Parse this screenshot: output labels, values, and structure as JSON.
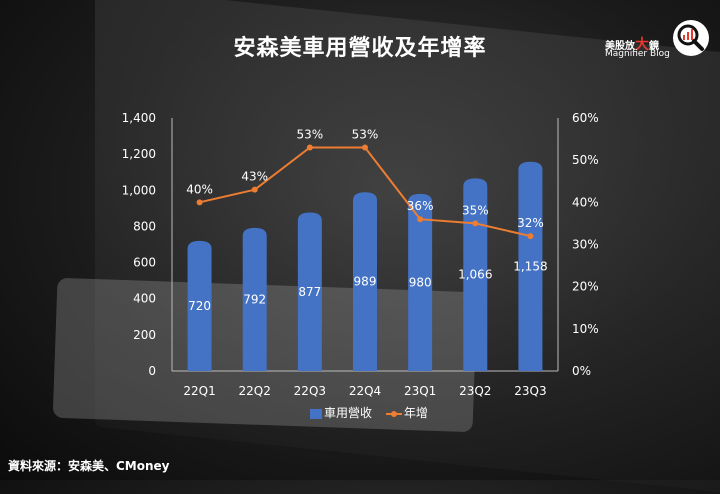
{
  "title": "安森美車用營收及年增率",
  "logo": {
    "cn_prefix": "美股放",
    "cn_big": "大",
    "cn_suffix": "鏡",
    "en": "Magnifier Blog"
  },
  "source": "資料來源：安森美、CMoney",
  "colors": {
    "bar": "#4472c4",
    "line": "#ed7d31",
    "text": "#ffffff"
  },
  "chart_data": {
    "type": "bar",
    "categories": [
      "22Q1",
      "22Q2",
      "22Q3",
      "22Q4",
      "23Q1",
      "23Q2",
      "23Q3"
    ],
    "series": [
      {
        "name": "車用營收",
        "type": "bar",
        "axis": "left",
        "values": [
          720,
          792,
          877,
          989,
          980,
          1066,
          1158
        ],
        "labels": [
          "720",
          "792",
          "877",
          "989",
          "980",
          "1,066",
          "1,158"
        ]
      },
      {
        "name": "年增",
        "type": "line",
        "axis": "right",
        "values": [
          40,
          43,
          53,
          53,
          36,
          35,
          32
        ],
        "labels": [
          "40%",
          "43%",
          "53%",
          "53%",
          "36%",
          "35%",
          "32%"
        ]
      }
    ],
    "y_left": {
      "range": [
        0,
        1400
      ],
      "ticks": [
        "0",
        "200",
        "400",
        "600",
        "800",
        "1,000",
        "1,200",
        "1,400"
      ]
    },
    "y_right": {
      "range": [
        0,
        60
      ],
      "ticks": [
        "0%",
        "10%",
        "20%",
        "30%",
        "40%",
        "50%",
        "60%"
      ]
    },
    "grid": false,
    "legend": "bottom"
  }
}
